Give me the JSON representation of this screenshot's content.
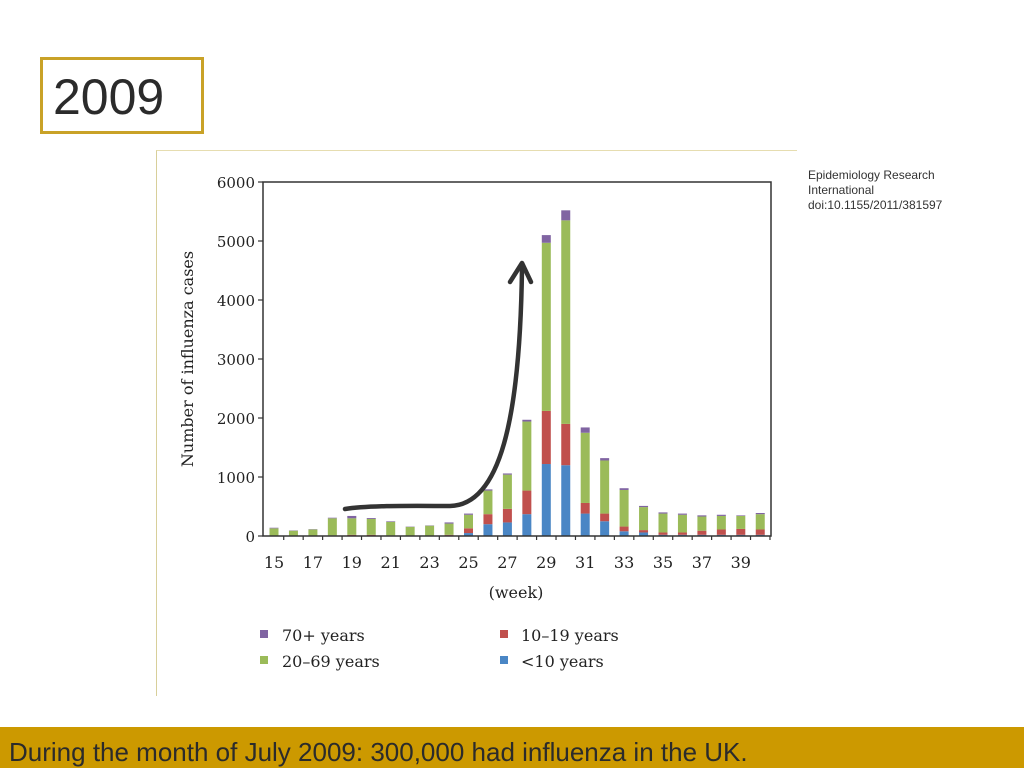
{
  "slide": {
    "title": "2009",
    "citation": [
      "Epidemiology Research",
      "International",
      "doi:10.1155/2011/381597"
    ],
    "footer": "During the month of July 2009: 300,000 had influenza in the UK."
  },
  "colors": {
    "accent": "#CC9900",
    "under10": "#4A86C5",
    "age10_19": "#C0504D",
    "age20_69": "#9BBB59",
    "age70plus": "#8064A2"
  },
  "chart_data": {
    "type": "bar",
    "stacked": true,
    "title": "",
    "xlabel": "(week)",
    "ylabel": "Number of influenza cases",
    "ylim": [
      0,
      6000
    ],
    "yticks": [
      "0",
      "1000",
      "2000",
      "3000",
      "4000",
      "5000",
      "6000"
    ],
    "yticks_values": [
      0,
      1000,
      2000,
      3000,
      4000,
      5000,
      6000
    ],
    "xtick_labels": [
      "15",
      "17",
      "19",
      "21",
      "23",
      "25",
      "27",
      "29",
      "31",
      "33",
      "35",
      "37",
      "39"
    ],
    "categories": [
      15,
      16,
      17,
      18,
      19,
      20,
      21,
      22,
      23,
      24,
      25,
      26,
      27,
      28,
      29,
      30,
      31,
      32,
      33,
      34,
      35,
      36,
      37,
      38,
      39,
      40
    ],
    "grid": false,
    "legend_position": "bottom",
    "series": [
      {
        "name": "<10 years",
        "color": "#4A86C5",
        "values": [
          0,
          0,
          0,
          0,
          0,
          0,
          0,
          0,
          0,
          10,
          50,
          200,
          230,
          370,
          1220,
          1200,
          380,
          250,
          80,
          60,
          20,
          20,
          20,
          20,
          20,
          20
        ]
      },
      {
        "name": "10–19 years",
        "color": "#C0504D",
        "values": [
          0,
          0,
          0,
          10,
          20,
          20,
          10,
          5,
          5,
          10,
          80,
          170,
          230,
          400,
          900,
          700,
          180,
          130,
          80,
          40,
          40,
          40,
          70,
          90,
          100,
          90
        ]
      },
      {
        "name": "20–69 years",
        "color": "#9BBB59",
        "values": [
          130,
          90,
          110,
          290,
          280,
          270,
          230,
          150,
          170,
          190,
          230,
          400,
          580,
          1170,
          2850,
          3450,
          1190,
          900,
          620,
          390,
          320,
          300,
          240,
          230,
          220,
          260
        ]
      },
      {
        "name": "70+ years",
        "color": "#8064A2",
        "values": [
          10,
          5,
          5,
          10,
          40,
          15,
          10,
          5,
          5,
          20,
          20,
          20,
          20,
          30,
          130,
          170,
          90,
          40,
          30,
          20,
          20,
          20,
          20,
          20,
          10,
          20
        ]
      }
    ],
    "legend": [
      "70+ years",
      "10–19 years",
      "20–69 years",
      "<10 years"
    ],
    "annotation": "curved arrow indicating rapid rise from week 19 to week 29"
  }
}
